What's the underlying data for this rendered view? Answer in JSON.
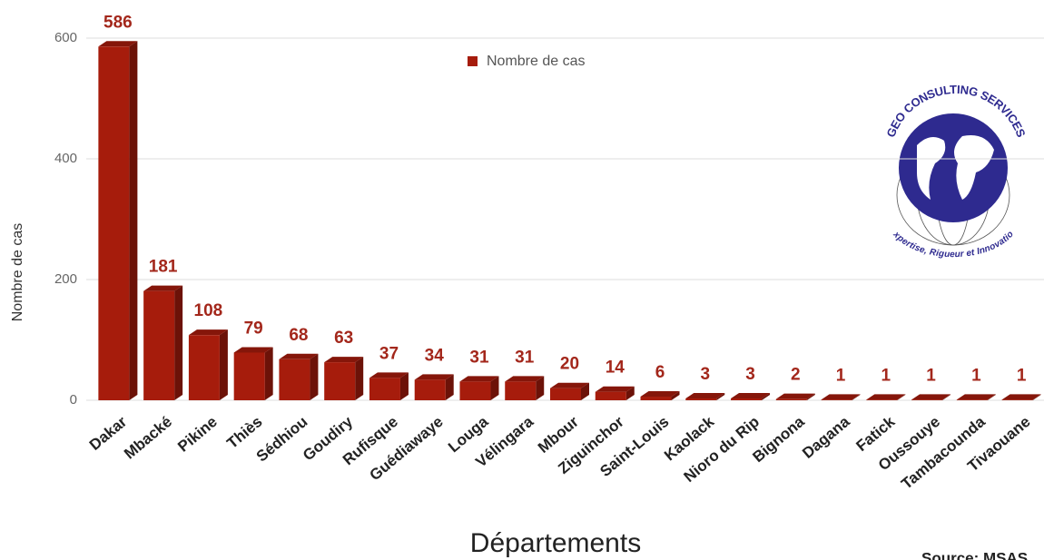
{
  "chart_data": {
    "type": "bar",
    "x_label": "Départements",
    "y_label": "Nombre de cas",
    "source": "Source: MSAS",
    "logo_title": "GEO CONSULTING SERVICES",
    "logo_tagline": "Expertise, Rigueur et Innovation",
    "categories": [
      "Dakar",
      "Mbacké",
      "Pikine",
      "Thiès",
      "Sédhiou",
      "Goudiry",
      "Rufisque",
      "Guédiawaye",
      "Louga",
      "Vélingara",
      "Mbour",
      "Ziguinchor",
      "Saint-Louis",
      "Kaolack",
      "Nioro du Rip",
      "Bignona",
      "Dagana",
      "Fatick",
      "Oussouye",
      "Tambacounda",
      "Tivaouane"
    ],
    "series": [
      {
        "name": "Nombre de cas",
        "color": "#a61c0c",
        "values": [
          586,
          181,
          108,
          79,
          68,
          63,
          37,
          34,
          31,
          31,
          20,
          14,
          6,
          3,
          3,
          2,
          1,
          1,
          1,
          1,
          1
        ]
      }
    ],
    "ylim": [
      0,
      600
    ],
    "yticks": [
      0,
      200,
      400,
      600
    ],
    "grid": true
  }
}
